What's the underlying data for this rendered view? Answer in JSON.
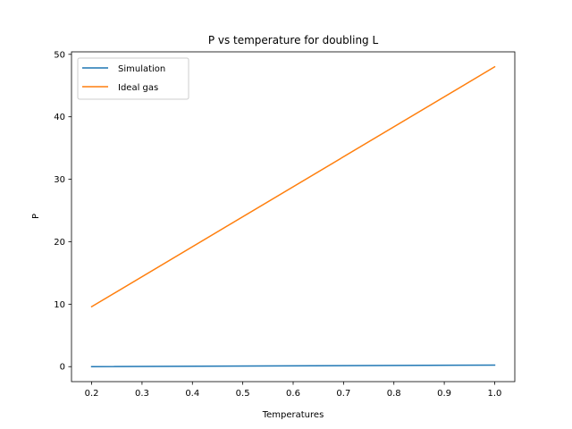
{
  "chart_data": {
    "type": "line",
    "title": "P vs temperature for doubling L",
    "xlabel": "Temperatures",
    "ylabel": "P",
    "xlim": [
      0.16,
      1.04
    ],
    "ylim": [
      -2.4,
      50.4
    ],
    "xticks": [
      "0.2",
      "0.3",
      "0.4",
      "0.5",
      "0.6",
      "0.7",
      "0.8",
      "0.9",
      "1.0"
    ],
    "yticks": [
      "0",
      "10",
      "20",
      "30",
      "40",
      "50"
    ],
    "grid": false,
    "legend_position": "upper left",
    "series": [
      {
        "name": "Simulation",
        "color": "#1f77b4",
        "x": [
          0.2,
          1.0
        ],
        "y": [
          0.0,
          0.25
        ]
      },
      {
        "name": "Ideal gas",
        "color": "#ff7f0e",
        "x": [
          0.2,
          1.0
        ],
        "y": [
          9.6,
          48.0
        ]
      }
    ]
  }
}
